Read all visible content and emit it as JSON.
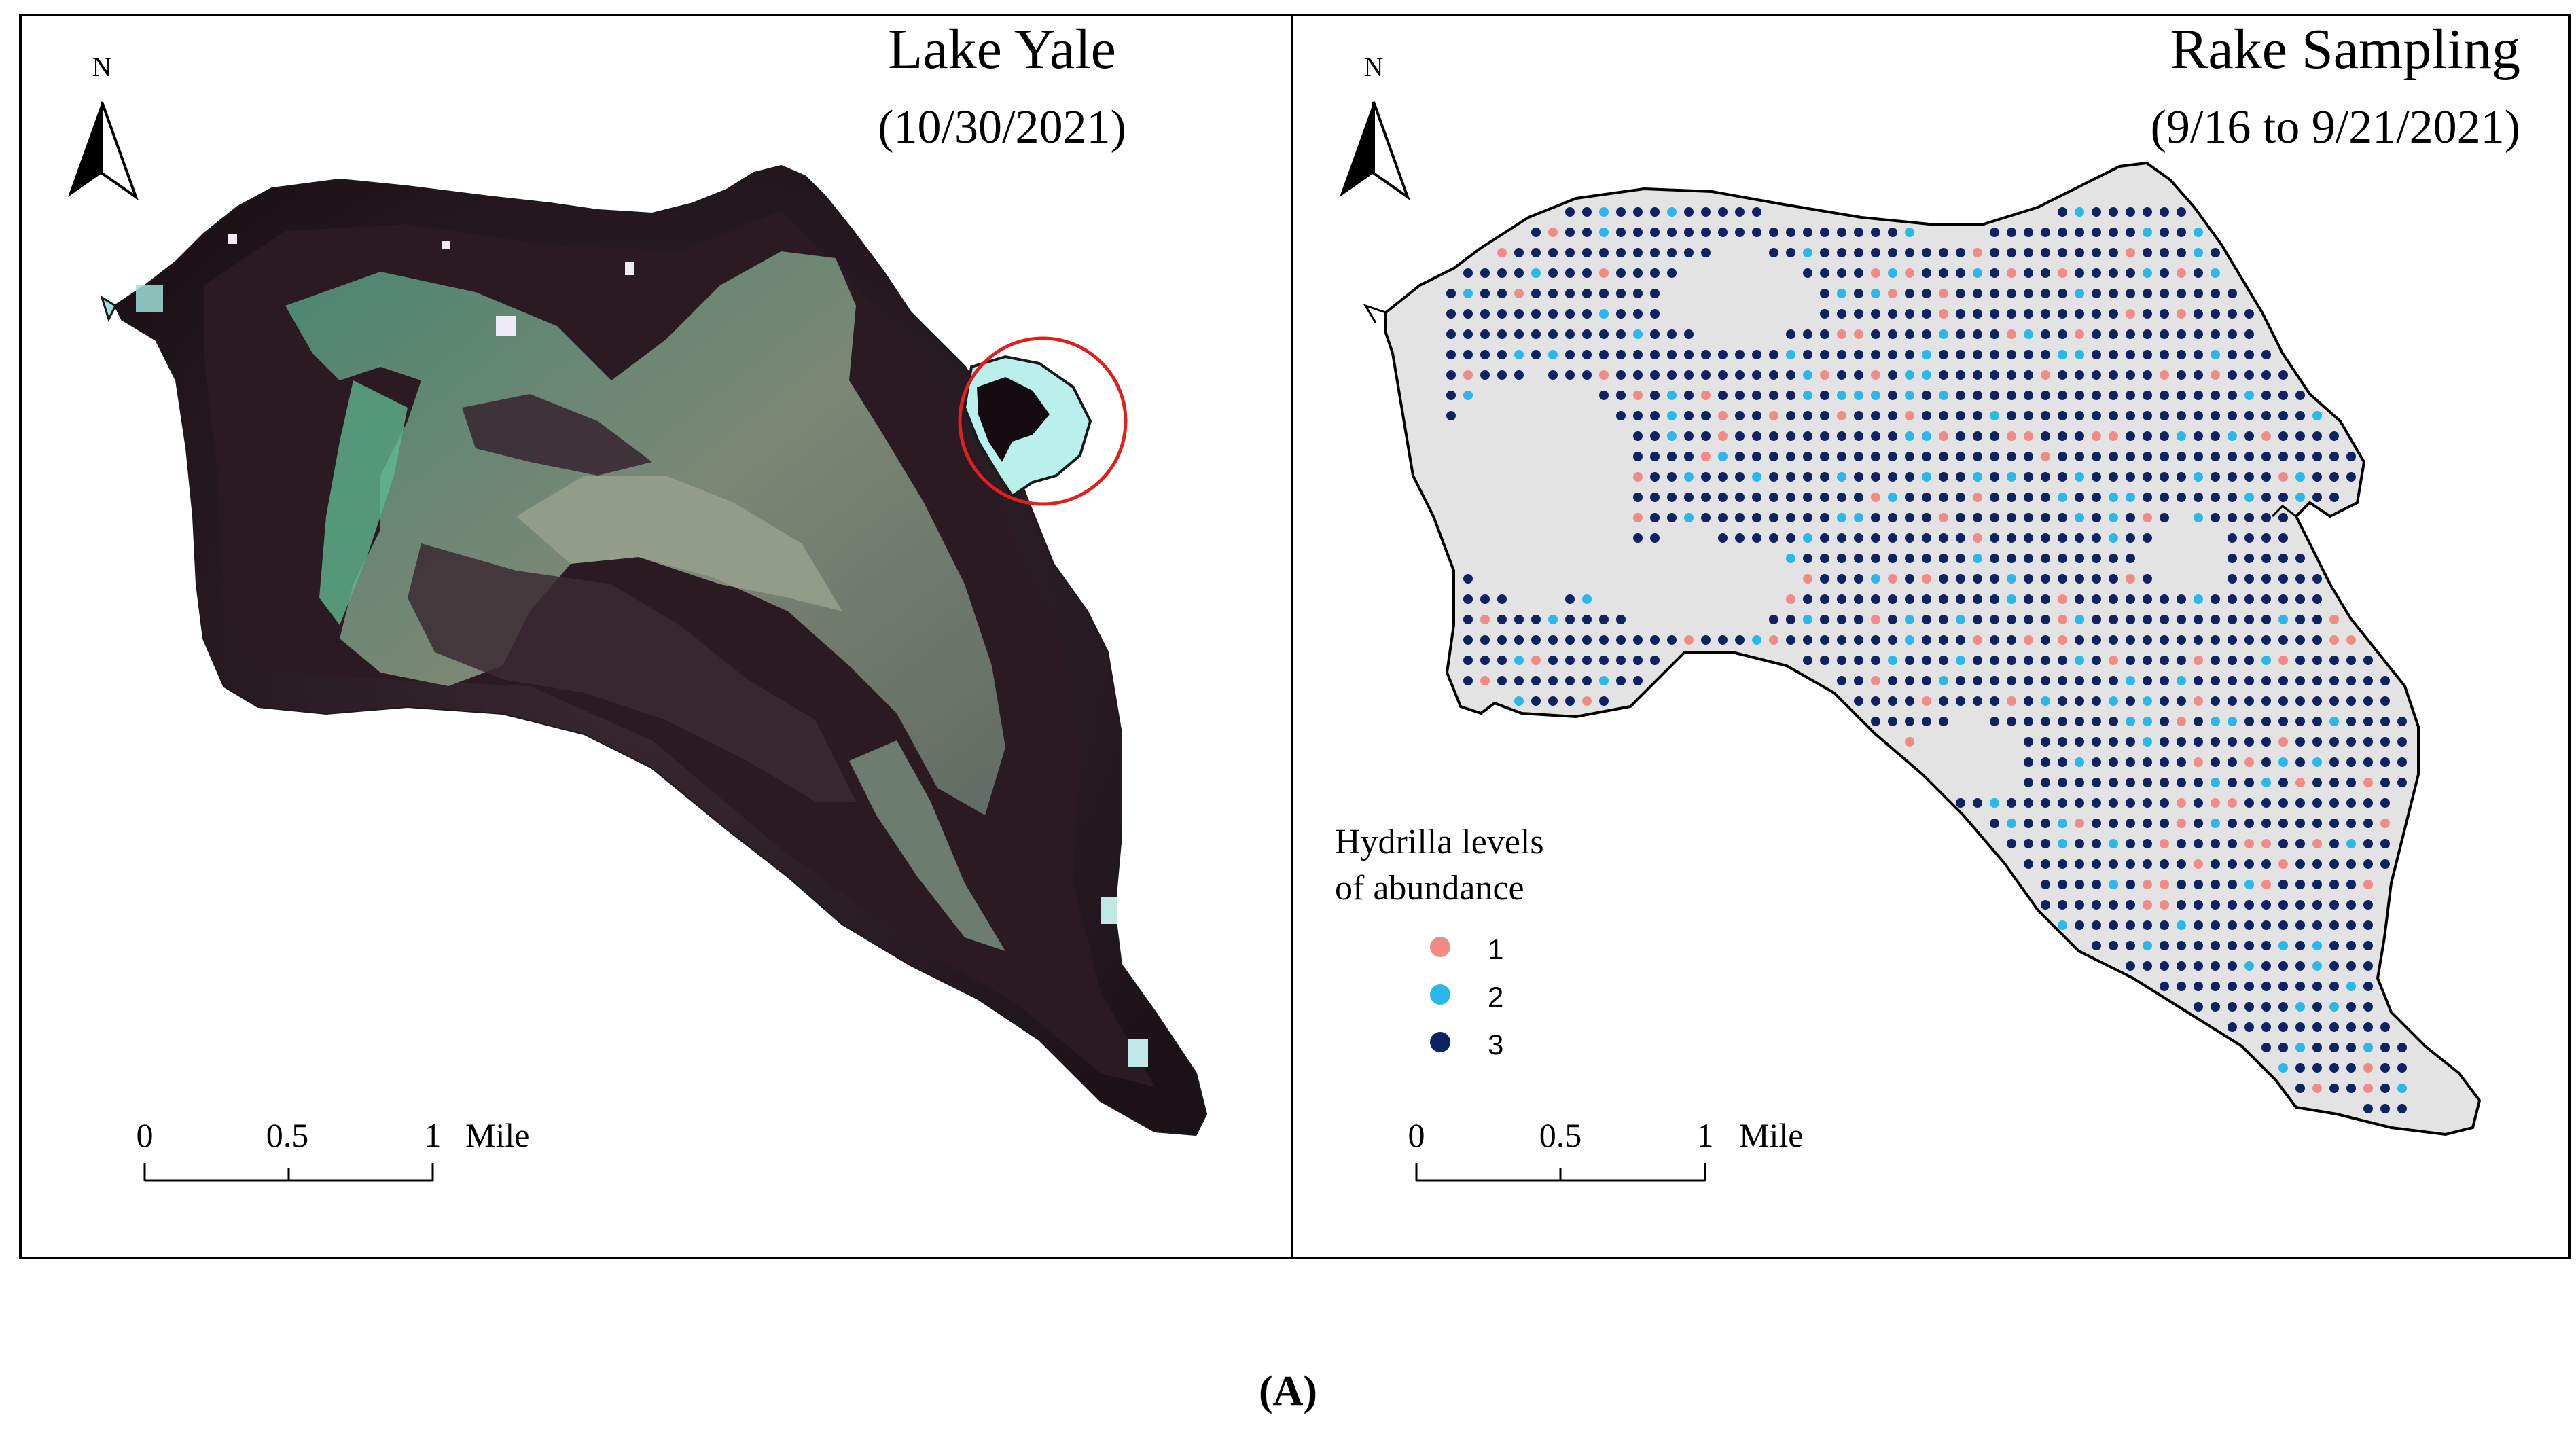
{
  "left_panel": {
    "title": "Lake Yale",
    "subtitle": "(10/30/2021)",
    "north": "N",
    "scale_labels": [
      "0",
      "0.5",
      "1"
    ],
    "scale_unit": "Mile"
  },
  "right_panel": {
    "title": "Rake Sampling",
    "subtitle": "(9/16 to 9/21/2021)",
    "north": "N",
    "scale_labels": [
      "0",
      "0.5",
      "1"
    ],
    "scale_unit": "Mile",
    "legend": {
      "title_line1": "Hydrilla levels",
      "title_line2": "of abundance",
      "items": [
        {
          "label": "1",
          "color": "#f08c85"
        },
        {
          "label": "2",
          "color": "#2bb7ea"
        },
        {
          "label": "3",
          "color": "#0d2463"
        }
      ]
    }
  },
  "panel_caption": "(A)",
  "colors": {
    "lake_fill": "#e3e3e3",
    "water_dark": "#2a1b24",
    "vegetation": "#6fa08a",
    "highlight_circle": "#e0201c",
    "frame": "#000000"
  }
}
